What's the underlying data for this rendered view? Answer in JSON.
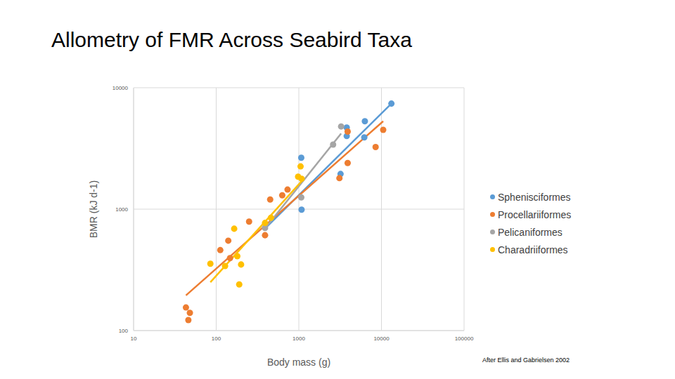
{
  "chart_data": {
    "type": "scatter",
    "title": "Allometry of FMR Across Seabird Taxa",
    "x_label": "Body mass (g)",
    "y_label": "BMR (kJ d-1)",
    "annotation": "After Ellis and Gabrielsen 2002",
    "log": true,
    "grid": true,
    "legend": "right",
    "xlim": [
      10,
      100000
    ],
    "ylim": [
      100,
      10000
    ],
    "xticks": [
      10,
      100,
      1000,
      10000,
      100000
    ],
    "yticks": [
      100,
      1000,
      10000
    ],
    "series": [
      {
        "name": "Sphenisciformes",
        "color": "#5b9bd5",
        "marker": "circle",
        "x": [
          13200,
          6300,
          3800,
          3800,
          6200,
          1070,
          3200,
          1080
        ],
        "values": [
          7400,
          5300,
          4700,
          4000,
          3900,
          2650,
          1950,
          990
        ],
        "trend": {
          "x": [
            380,
            13200
          ],
          "values": [
            680,
            7400
          ]
        }
      },
      {
        "name": "Procellariiformes",
        "color": "#ed7d31",
        "marker": "circle",
        "x": [
          10500,
          8500,
          3900,
          3900,
          3100,
          730,
          630,
          450,
          250,
          390,
          140,
          112,
          147,
          43,
          48,
          46
        ],
        "values": [
          4500,
          3250,
          4350,
          2400,
          1800,
          1450,
          1300,
          1200,
          790,
          610,
          550,
          460,
          395,
          155,
          140,
          122
        ],
        "trend": {
          "x": [
            43,
            10500
          ],
          "values": [
            195,
            5300
          ]
        }
      },
      {
        "name": "Pelicaniformes",
        "color": "#a5a5a5",
        "marker": "circle",
        "x": [
          3250,
          2600,
          1070,
          390
        ],
        "values": [
          4800,
          3400,
          1250,
          700
        ],
        "trend": {
          "x": [
            375,
            3250
          ],
          "values": [
            670,
            4200
          ]
        }
      },
      {
        "name": "Charadriiformes",
        "color": "#ffc000",
        "marker": "circle",
        "x": [
          1050,
          980,
          1080,
          460,
          390,
          165,
          85,
          128,
          180,
          200,
          190
        ],
        "values": [
          2250,
          1850,
          1780,
          850,
          770,
          690,
          355,
          340,
          410,
          350,
          240
        ],
        "trend": {
          "x": [
            85,
            1150
          ],
          "values": [
            250,
            1780
          ]
        }
      }
    ]
  }
}
